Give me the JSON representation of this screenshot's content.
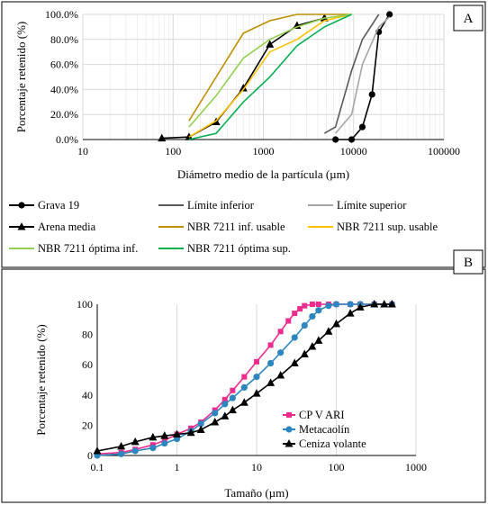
{
  "panel_a": {
    "letter": "A",
    "chart_data": {
      "type": "line",
      "x_scale": "log",
      "xlabel": "Diámetro medio de la partícula (µm)",
      "ylabel": "Porcentaje retenido (%)",
      "xlim": [
        10,
        100000
      ],
      "ylim": [
        0,
        100
      ],
      "x_ticks": [
        "10",
        "100",
        "1000",
        "10000",
        "100000"
      ],
      "y_ticks": [
        "0.0%",
        "20.0%",
        "40.0%",
        "60.0%",
        "80.0%",
        "100.0%"
      ],
      "series": [
        {
          "name": "Grava 19",
          "color": "#000000",
          "marker": "circle",
          "x": [
            6300,
            9500,
            12500,
            16000,
            19000,
            25000
          ],
          "y": [
            0,
            0,
            10,
            36,
            86,
            100
          ]
        },
        {
          "name": "Límite inferior",
          "color": "#595959",
          "marker": "none",
          "x": [
            4750,
            6300,
            9500,
            12500,
            19000
          ],
          "y": [
            5,
            10,
            55,
            80,
            100
          ]
        },
        {
          "name": "Límite superior",
          "color": "#a6a6a6",
          "marker": "none",
          "x": [
            6300,
            9500,
            12500,
            19000,
            25000
          ],
          "y": [
            5,
            20,
            60,
            90,
            98
          ]
        },
        {
          "name": "Arena media",
          "color": "#000000",
          "marker": "triangle",
          "x": [
            75,
            150,
            300,
            600,
            1180,
            2360,
            4750
          ],
          "y": [
            1,
            2,
            14,
            41,
            76,
            91,
            97
          ]
        },
        {
          "name": "NBR 7211 inf. usable",
          "color": "#bf8f00",
          "marker": "none",
          "x": [
            150,
            300,
            600,
            1180,
            2360,
            4750,
            9500
          ],
          "y": [
            15,
            50,
            85,
            95,
            100,
            100,
            100
          ]
        },
        {
          "name": "NBR 7211 sup. usable",
          "color": "#ffc000",
          "marker": "none",
          "x": [
            150,
            300,
            600,
            1180,
            2360,
            4750,
            9500
          ],
          "y": [
            2,
            15,
            40,
            70,
            80,
            95,
            100
          ]
        },
        {
          "name": "NBR 7211 óptima inf.",
          "color": "#92d050",
          "marker": "none",
          "x": [
            150,
            300,
            600,
            1180,
            2360,
            4750,
            9500
          ],
          "y": [
            10,
            35,
            65,
            80,
            90,
            97,
            100
          ]
        },
        {
          "name": "NBR 7211 óptima sup.",
          "color": "#00b050",
          "marker": "none",
          "x": [
            150,
            300,
            600,
            1180,
            2360,
            4750,
            9500
          ],
          "y": [
            0,
            5,
            30,
            50,
            75,
            90,
            100
          ]
        }
      ],
      "legend_position": "bottom"
    }
  },
  "panel_b": {
    "letter": "B",
    "chart_data": {
      "type": "line",
      "x_scale": "log",
      "xlabel": "Tamaño (µm)",
      "ylabel": "Porcentaje retenido (%)",
      "xlim": [
        0.1,
        1000
      ],
      "ylim": [
        0,
        100
      ],
      "x_ticks": [
        "0.1",
        "1",
        "10",
        "100",
        "1000"
      ],
      "y_ticks": [
        "0",
        "20",
        "40",
        "60",
        "80",
        "100"
      ],
      "legend_position": "bottom-right",
      "series": [
        {
          "name": "CP V ARI",
          "color": "#ec2c8e",
          "marker": "square",
          "x": [
            0.1,
            0.2,
            0.3,
            0.5,
            0.7,
            1,
            1.5,
            2,
            3,
            4,
            5,
            7,
            10,
            15,
            20,
            25,
            30,
            35,
            40,
            50,
            60,
            80,
            100,
            150,
            200,
            300,
            500
          ],
          "y": [
            1,
            2,
            4,
            7,
            10,
            14,
            18,
            22,
            30,
            37,
            43,
            52,
            62,
            73,
            82,
            89,
            94,
            97,
            99,
            100,
            100,
            100,
            100,
            100,
            100,
            100,
            100
          ]
        },
        {
          "name": "Metacaolín",
          "color": "#2e86c1",
          "marker": "circle",
          "x": [
            0.1,
            0.2,
            0.3,
            0.5,
            0.7,
            1,
            1.5,
            2,
            3,
            4,
            5,
            7,
            10,
            15,
            20,
            30,
            40,
            50,
            60,
            80,
            100,
            150,
            200,
            300,
            500
          ],
          "y": [
            0,
            1,
            3,
            5,
            8,
            11,
            16,
            21,
            28,
            34,
            38,
            45,
            52,
            61,
            68,
            78,
            86,
            92,
            96,
            99,
            100,
            100,
            100,
            100,
            100
          ]
        },
        {
          "name": "Ceniza volante",
          "color": "#000000",
          "marker": "triangle",
          "x": [
            0.1,
            0.2,
            0.3,
            0.5,
            0.7,
            1,
            1.5,
            2,
            3,
            4,
            5,
            7,
            10,
            15,
            20,
            30,
            40,
            50,
            60,
            80,
            100,
            150,
            200,
            300,
            400,
            500
          ],
          "y": [
            3,
            6,
            9,
            12,
            13,
            14,
            15,
            17,
            22,
            26,
            30,
            35,
            41,
            48,
            53,
            61,
            67,
            72,
            76,
            82,
            87,
            94,
            98,
            100,
            100,
            100
          ]
        }
      ]
    }
  }
}
